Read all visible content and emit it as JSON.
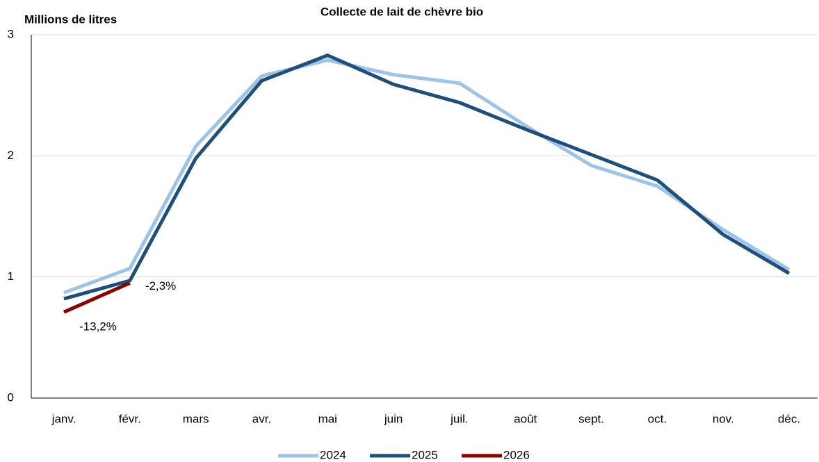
{
  "chart_data": {
    "type": "line",
    "title": "Collecte de lait de chèvre bio",
    "y_label": "Millions de litres",
    "categories": [
      "janv.",
      "févr.",
      "mars",
      "avr.",
      "mai",
      "juin",
      "juil.",
      "août",
      "sept.",
      "oct.",
      "nov.",
      "déc."
    ],
    "series": [
      {
        "name": "2024",
        "color": "#9dc3e6",
        "values": [
          0.87,
          1.07,
          2.08,
          2.66,
          2.79,
          2.67,
          2.6,
          2.25,
          1.92,
          1.75,
          1.39,
          1.06
        ]
      },
      {
        "name": "2025",
        "color": "#1f4e79",
        "values": [
          0.82,
          0.97,
          1.98,
          2.62,
          2.83,
          2.59,
          2.44,
          2.22,
          2.01,
          1.8,
          1.35,
          1.03
        ]
      },
      {
        "name": "2026",
        "color": "#8b0000",
        "values": [
          0.71,
          0.95,
          null,
          null,
          null,
          null,
          null,
          null,
          null,
          null,
          null,
          null
        ]
      }
    ],
    "annotations": [
      {
        "text": "-13,2%",
        "color": "#c00000"
      },
      {
        "text": "-2,3%",
        "color": "#c00000"
      }
    ],
    "ylim": [
      0,
      3
    ],
    "yticks": [
      0,
      1,
      2,
      3
    ],
    "grid": true,
    "legend": "bottom"
  }
}
